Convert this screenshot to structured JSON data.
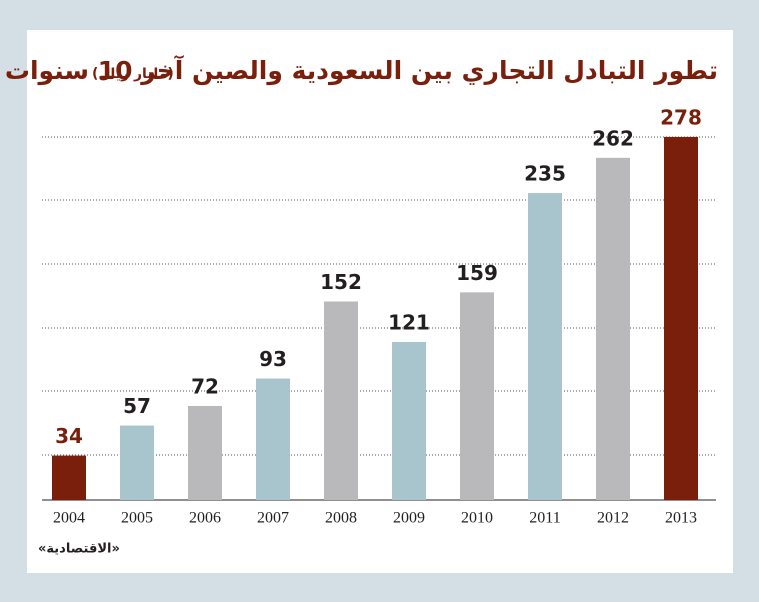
{
  "chart_data": {
    "type": "bar",
    "title": "تطور التبادل التجاري بين السعودية والصين آخر 10 سنوات",
    "subtitle": "(مليار ريال)",
    "source": "«الاقتصادية»",
    "categories": [
      "2004",
      "2005",
      "2006",
      "2007",
      "2008",
      "2009",
      "2010",
      "2011",
      "2012",
      "2013"
    ],
    "values": [
      34,
      57,
      72,
      93,
      152,
      121,
      159,
      235,
      262,
      278
    ],
    "colors": [
      "#7a1f0c",
      "#a8c4cc",
      "#b9b9bc",
      "#a8c4cc",
      "#b9b9bc",
      "#a8c4cc",
      "#b9b9bc",
      "#a8c4cc",
      "#b9b9bc",
      "#7a1f0c"
    ],
    "value_label_colors": [
      "#7a1f0c",
      "#231f20",
      "#231f20",
      "#231f20",
      "#231f20",
      "#231f20",
      "#231f20",
      "#231f20",
      "#231f20",
      "#7a1f0c"
    ],
    "ylim": [
      0,
      300
    ]
  }
}
